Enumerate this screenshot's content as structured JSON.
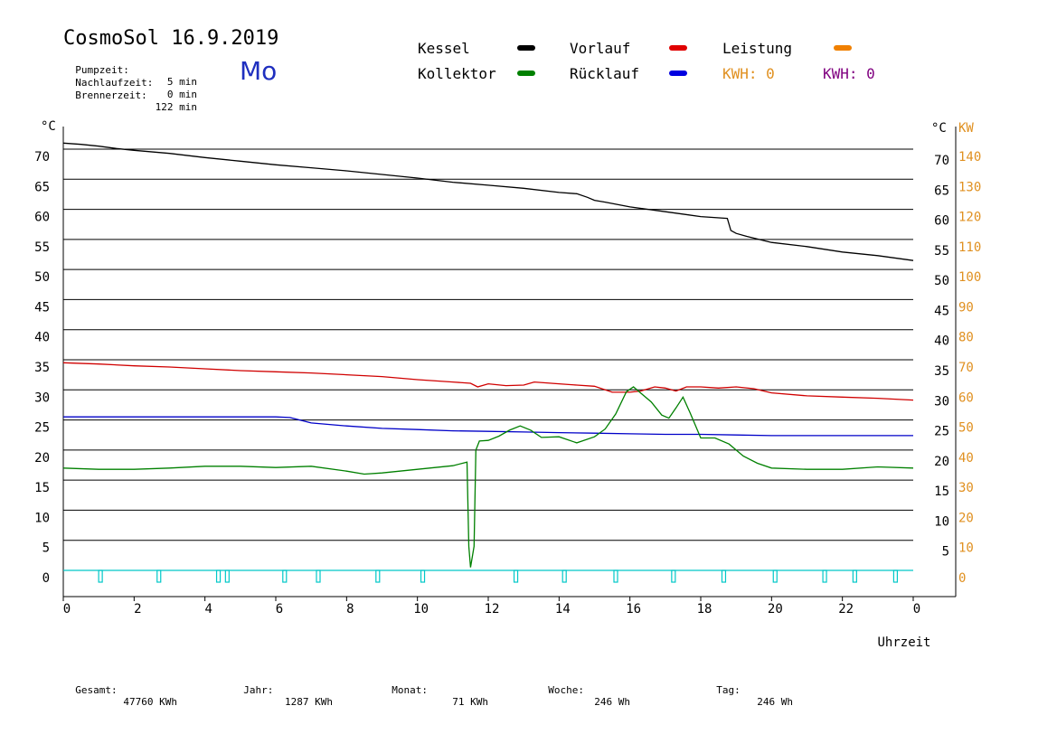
{
  "header": {
    "title": "CosmoSol 16.9.2019",
    "weekday": "Mo",
    "stats": [
      {
        "label": "Pumpzeit:",
        "value": "5 min"
      },
      {
        "label": "Nachlaufzeit:",
        "value": "0 min"
      },
      {
        "label": "Brennerzeit:",
        "value": "122 min"
      }
    ]
  },
  "legend": [
    {
      "label": "Kessel",
      "color": "#000000"
    },
    {
      "label": "Vorlauf",
      "color": "#e00000"
    },
    {
      "label": "Leistung",
      "color": "#f08000"
    },
    {
      "label": "Kollektor",
      "color": "#008000"
    },
    {
      "label": "Rücklauf",
      "color": "#0000e0"
    }
  ],
  "kwh": [
    {
      "label": "KWH: 0",
      "color": "#e09020"
    },
    {
      "label": "KWH: 0",
      "color": "#800080"
    }
  ],
  "footer": [
    {
      "label": "Gesamt:",
      "value": "47760 KWh"
    },
    {
      "label": "Jahr:",
      "value": "1287 KWh"
    },
    {
      "label": "Monat:",
      "value": "71 KWh"
    },
    {
      "label": "Woche:",
      "value": "246 Wh"
    },
    {
      "label": "Tag:",
      "value": "246 Wh"
    }
  ],
  "chart_data": {
    "type": "line",
    "xlabel": "Uhrzeit",
    "ylabel_left": "°C",
    "ylabel_right": "°C",
    "ylabel_power": "KW",
    "x_ticks": [
      "0",
      "2",
      "4",
      "6",
      "8",
      "10",
      "12",
      "14",
      "16",
      "18",
      "20",
      "22",
      "0"
    ],
    "xlim": [
      0,
      24
    ],
    "ylim": [
      0,
      70
    ],
    "y_ticks_left": [
      70,
      65,
      60,
      55,
      50,
      45,
      40,
      35,
      30,
      25,
      20,
      15,
      10,
      5,
      0
    ],
    "y_ticks_right": [
      70,
      65,
      60,
      55,
      50,
      45,
      40,
      35,
      30,
      25,
      20,
      15,
      10,
      5
    ],
    "y_ticks_power": [
      140,
      130,
      120,
      110,
      100,
      90,
      80,
      70,
      60,
      50,
      40,
      30,
      20,
      10,
      0
    ],
    "grid": "horizontal",
    "series": [
      {
        "name": "Kessel",
        "color": "#000000",
        "x": [
          0,
          0.5,
          1,
          1.5,
          2,
          3,
          4,
          5,
          6,
          7,
          8,
          9,
          10,
          11,
          12,
          13,
          14,
          14.5,
          14.8,
          15,
          15.3,
          16,
          17,
          18,
          18.75,
          18.85,
          19,
          19.3,
          20,
          21,
          22,
          23,
          24
        ],
        "y": [
          71,
          70.8,
          70.5,
          70.1,
          69.8,
          69.3,
          68.6,
          68,
          67.4,
          66.9,
          66.4,
          65.8,
          65.2,
          64.5,
          64,
          63.5,
          62.8,
          62.6,
          62,
          61.5,
          61.2,
          60.4,
          59.6,
          58.8,
          58.5,
          56.5,
          56,
          55.5,
          54.5,
          53.8,
          52.9,
          52.3,
          51.5
        ]
      },
      {
        "name": "Vorlauf",
        "color": "#d00000",
        "x": [
          0,
          1,
          2,
          3,
          4,
          5,
          6,
          7,
          8,
          9,
          10,
          11,
          11.5,
          11.7,
          12,
          12.5,
          13,
          13.3,
          14,
          14.5,
          15,
          15.5,
          16,
          16.3,
          16.7,
          17,
          17.3,
          17.6,
          18,
          18.5,
          19,
          19.5,
          20,
          21,
          22,
          23,
          24
        ],
        "y": [
          34.5,
          34.3,
          34,
          33.8,
          33.5,
          33.2,
          33,
          32.8,
          32.5,
          32.2,
          31.7,
          31.3,
          31.1,
          30.5,
          31,
          30.7,
          30.8,
          31.3,
          31,
          30.8,
          30.6,
          29.6,
          29.6,
          29.8,
          30.5,
          30.3,
          29.8,
          30.5,
          30.5,
          30.3,
          30.5,
          30.2,
          29.5,
          29,
          28.8,
          28.6,
          28.3
        ]
      },
      {
        "name": "Rücklauf",
        "color": "#0000c8",
        "x": [
          0,
          2,
          4,
          6,
          6.4,
          7,
          8,
          9,
          10,
          11,
          12,
          13,
          14,
          15,
          16,
          17,
          18,
          19,
          20,
          21,
          22,
          23,
          24
        ],
        "y": [
          25.5,
          25.5,
          25.5,
          25.5,
          25.4,
          24.5,
          24,
          23.6,
          23.4,
          23.2,
          23.1,
          23,
          22.9,
          22.8,
          22.7,
          22.6,
          22.6,
          22.5,
          22.4,
          22.4,
          22.4,
          22.4,
          22.4
        ]
      },
      {
        "name": "Kollektor",
        "color": "#008000",
        "x": [
          0,
          1,
          2,
          3,
          4,
          5,
          6,
          7,
          8,
          8.5,
          9,
          10,
          11,
          11.4,
          11.45,
          11.5,
          11.6,
          11.65,
          11.75,
          12,
          12.3,
          12.6,
          12.9,
          13.2,
          13.5,
          14,
          14.5,
          15,
          15.3,
          15.6,
          15.9,
          16.1,
          16.3,
          16.6,
          16.9,
          17.1,
          17.3,
          17.5,
          17.7,
          18,
          18.4,
          18.8,
          19.2,
          19.6,
          20,
          21,
          22,
          23,
          24
        ],
        "y": [
          17,
          16.8,
          16.8,
          17,
          17.3,
          17.3,
          17.1,
          17.3,
          16.5,
          16,
          16.2,
          16.8,
          17.4,
          18,
          4,
          0.5,
          4,
          20,
          21.5,
          21.6,
          22.3,
          23.3,
          24,
          23.3,
          22.1,
          22.2,
          21.2,
          22.2,
          23.5,
          26,
          29.7,
          30.5,
          29.5,
          28,
          25.8,
          25.3,
          27,
          28.8,
          26.2,
          22,
          22,
          21,
          19,
          17.8,
          17,
          16.8,
          16.8,
          17.2,
          17
        ]
      }
    ],
    "pump_pulses_x": [
      1.05,
      2.7,
      4.38,
      4.63,
      6.25,
      7.2,
      8.88,
      10.15,
      12.78,
      14.15,
      15.6,
      17.23,
      18.65,
      20.1,
      21.5,
      22.35,
      23.5
    ],
    "pump_color": "#00c8c8"
  }
}
